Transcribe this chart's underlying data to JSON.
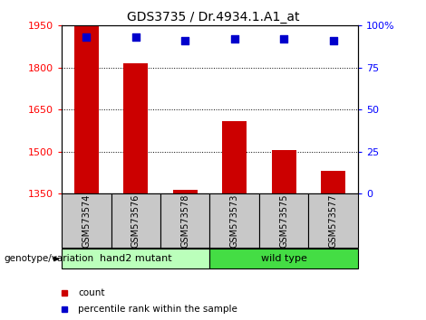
{
  "title": "GDS3735 / Dr.4934.1.A1_at",
  "categories": [
    "GSM573574",
    "GSM573576",
    "GSM573578",
    "GSM573573",
    "GSM573575",
    "GSM573577"
  ],
  "bar_values": [
    1950,
    1815,
    1362,
    1610,
    1505,
    1430
  ],
  "percentile_values": [
    93,
    93,
    91,
    92,
    92,
    91
  ],
  "ylim_left": [
    1350,
    1950
  ],
  "ylim_right": [
    0,
    100
  ],
  "yticks_left": [
    1350,
    1500,
    1650,
    1800,
    1950
  ],
  "yticks_right": [
    0,
    25,
    50,
    75,
    100
  ],
  "ytick_labels_right": [
    "0",
    "25",
    "50",
    "75",
    "100%"
  ],
  "bar_color": "#cc0000",
  "dot_color": "#0000cc",
  "grid_color": "#000000",
  "group1_label": "hand2 mutant",
  "group2_label": "wild type",
  "group1_color": "#bbffbb",
  "group2_color": "#44dd44",
  "legend_count_label": "count",
  "legend_pct_label": "percentile rank within the sample",
  "genotype_label": "genotype/variation",
  "bar_width": 0.5,
  "dot_size": 40,
  "title_fontsize": 10,
  "tick_fontsize": 8,
  "label_fontsize": 8
}
